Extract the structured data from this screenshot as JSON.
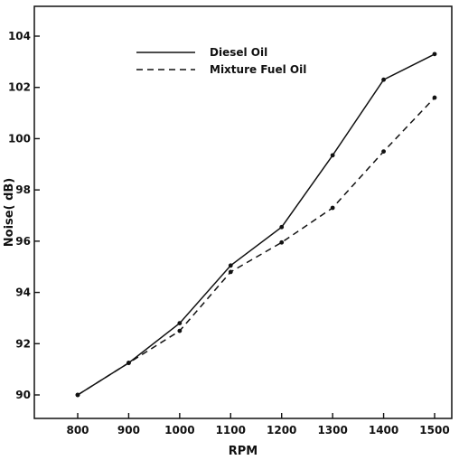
{
  "chart_data": {
    "type": "line",
    "title": "",
    "xlabel": "RPM",
    "ylabel": "Noise( dB)",
    "x": [
      800,
      900,
      1000,
      1100,
      1200,
      1300,
      1400,
      1500
    ],
    "xlim": [
      800,
      1500
    ],
    "ylim": [
      89,
      105
    ],
    "xticks": [
      800,
      900,
      1000,
      1100,
      1200,
      1300,
      1400,
      1500
    ],
    "yticks": [
      90,
      92,
      94,
      96,
      98,
      100,
      102,
      104
    ],
    "grid": false,
    "legend_position": "top-center",
    "series": [
      {
        "name": "Diesel Oil",
        "style": "solid",
        "color": "#111111",
        "values": [
          90.0,
          91.25,
          92.8,
          95.05,
          96.55,
          99.35,
          102.3,
          103.3
        ]
      },
      {
        "name": "Mixture Fuel Oil",
        "style": "dashed",
        "color": "#111111",
        "values": [
          90.0,
          91.25,
          92.5,
          94.8,
          95.95,
          97.3,
          99.5,
          101.6
        ]
      }
    ]
  }
}
